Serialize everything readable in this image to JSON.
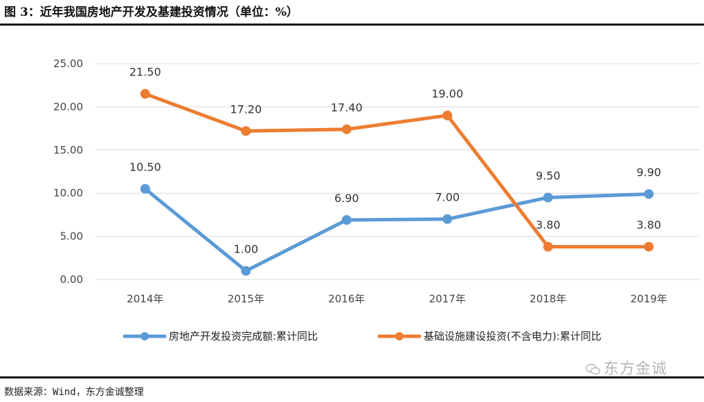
{
  "figure_title": "图 3：近年我国房地产开发及基建投资情况（单位：%）",
  "source_note": "数据来源：Wind，东方金诚整理",
  "watermark": "东方金诚",
  "colors": {
    "series1": "#5B9BD5",
    "series2": "#ED7D31",
    "grid": "#d9d9d9"
  },
  "chart_data": {
    "type": "line",
    "categories": [
      "2014年",
      "2015年",
      "2016年",
      "2017年",
      "2018年",
      "2019年"
    ],
    "ylim": [
      0,
      25
    ],
    "yticks": [
      "0.00",
      "5.00",
      "10.00",
      "15.00",
      "20.00",
      "25.00"
    ],
    "grid": true,
    "legend": "bottom",
    "series": [
      {
        "name": "房地产开发投资完成额:累计同比",
        "values": [
          10.5,
          1.0,
          6.9,
          7.0,
          9.5,
          9.9
        ],
        "labels": [
          "10.50",
          "1.00",
          "6.90",
          "7.00",
          "9.50",
          "9.90"
        ]
      },
      {
        "name": "基础设施建设投资(不含电力):累计同比",
        "values": [
          21.5,
          17.2,
          17.4,
          19.0,
          3.8,
          3.8
        ],
        "labels": [
          "21.50",
          "17.20",
          "17.40",
          "19.00",
          "3.80",
          "3.80"
        ]
      }
    ]
  }
}
